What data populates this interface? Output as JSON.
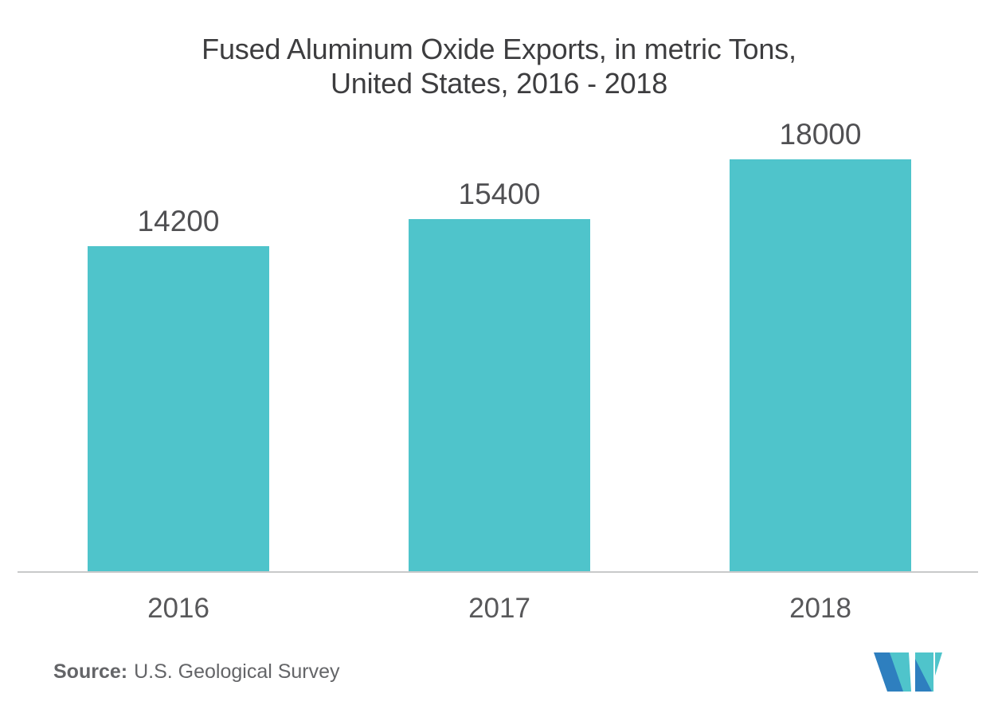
{
  "chart_data": {
    "type": "bar",
    "title": "Fused Aluminum Oxide Exports, in metric Tons, United States, 2016 - 2018",
    "title_lines": [
      "Fused Aluminum Oxide Exports, in metric Tons,",
      "United States, 2016 - 2018"
    ],
    "categories": [
      "2016",
      "2017",
      "2018"
    ],
    "values": [
      14200,
      15400,
      18000
    ],
    "value_labels": [
      "14200",
      "15400",
      "18000"
    ],
    "series_name": "Fused Aluminum Oxide Exports (metric tons)",
    "xlabel": "",
    "ylabel": "",
    "ylim": [
      0,
      18000
    ],
    "grid": false,
    "legend_position": "none",
    "bar_color": "#4FC4CB",
    "value_label_color": "#505053",
    "tick_label_color": "#58585a",
    "title_color": "#3d3d3f",
    "axis_line_color": "#c8c9ca"
  },
  "source": {
    "prefix": "Source:",
    "text": "U.S. Geological Survey"
  },
  "logo": {
    "name": "mordor-intelligence-logo",
    "teal": "#4FC4CB",
    "blue": "#2E7FBF"
  },
  "background_color": "#ffffff"
}
